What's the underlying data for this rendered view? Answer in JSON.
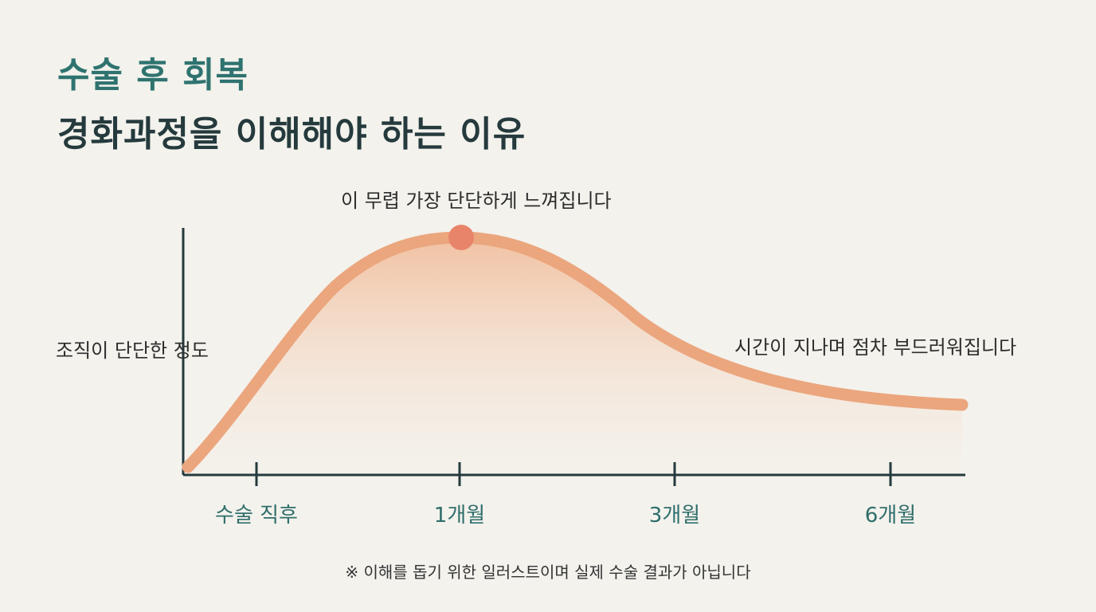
{
  "title": {
    "line1": "수술 후 회복",
    "line2": "경화과정을 이해해야 하는 이유"
  },
  "chart_data": {
    "type": "area",
    "title": "",
    "ylabel": "조직이 단단한 정도",
    "xlabel": "",
    "categories": [
      "수술 직후",
      "1개월",
      "3개월",
      "6개월"
    ],
    "annotations": {
      "peak": "이 무렵 가장 단단하게 느껴집니다",
      "tail": "시간이 지나며 점차 부드러워집니다"
    },
    "colors": {
      "curve": "#eba67e",
      "peak_marker": "#e8846a",
      "axis": "#253a3d",
      "fill_top": "#f2b995",
      "fill_bottom": "#f6efe6"
    }
  },
  "footnote": "※ 이해를 돕기 위한 일러스트이며 실제 수술 결과가 아닙니다"
}
